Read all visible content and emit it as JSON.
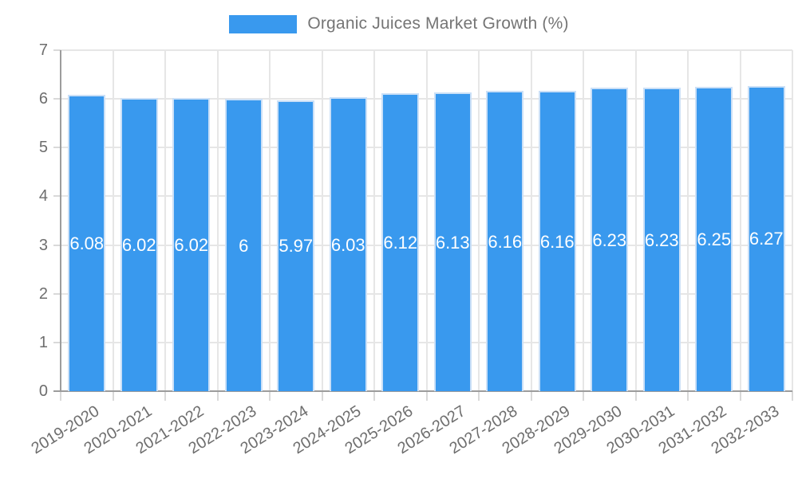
{
  "legend": {
    "label": "Organic Juices Market Growth (%)"
  },
  "colors": {
    "bar": "#3999ee",
    "bar_border": "#cbe0f7",
    "grid": "#e6e6e6",
    "axis": "#9c9c9c",
    "tick": "#d9d9d9",
    "tick_text": "#6e6e6e",
    "legend_text": "#757575",
    "value_label": "#ffffff",
    "background": "#ffffff"
  },
  "chart_data": {
    "type": "bar",
    "title": "Organic Juices Market Growth (%)",
    "categories": [
      "2019-2020",
      "2020-2021",
      "2021-2022",
      "2022-2023",
      "2023-2024",
      "2024-2025",
      "2025-2026",
      "2026-2027",
      "2027-2028",
      "2028-2029",
      "2029-2030",
      "2030-2031",
      "2031-2032",
      "2032-2033"
    ],
    "values": [
      6.08,
      6.02,
      6.02,
      6,
      5.97,
      6.03,
      6.12,
      6.13,
      6.16,
      6.16,
      6.23,
      6.23,
      6.25,
      6.27
    ],
    "value_labels": [
      "6.08",
      "6.02",
      "6.02",
      "6",
      "5.97",
      "6.03",
      "6.12",
      "6.13",
      "6.16",
      "6.16",
      "6.23",
      "6.23",
      "6.25",
      "6.27"
    ],
    "xlabel": "",
    "ylabel": "",
    "ylim": [
      0,
      7
    ],
    "y_ticks": [
      0,
      1,
      2,
      3,
      4,
      5,
      6,
      7
    ],
    "grid": true,
    "legend_position": "top",
    "bar_label_position": "center",
    "x_label_rotation_deg": -32
  }
}
